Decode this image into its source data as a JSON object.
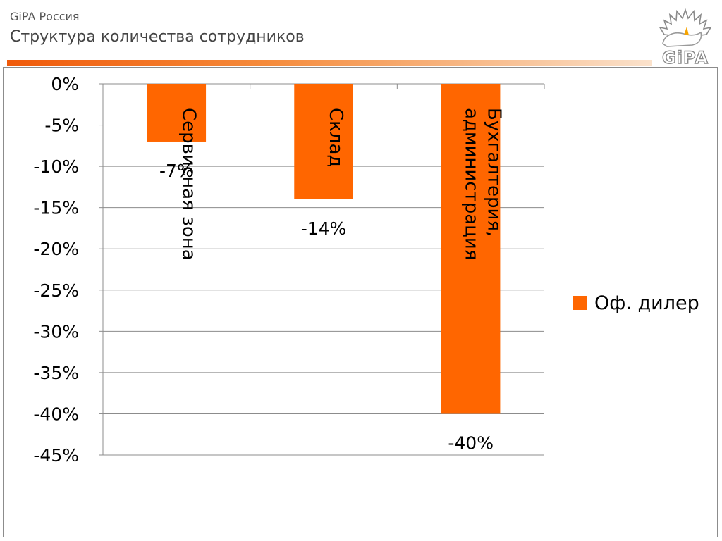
{
  "header": {
    "org": "GiPA Россия",
    "title": "Структура количества сотрудников",
    "logo_text": "GiPA"
  },
  "colors": {
    "accent": "#f05a0a",
    "bar": "#ff6600",
    "grid": "#8c8c8c"
  },
  "chart_data": {
    "type": "bar",
    "categories": [
      "Сервисная зона",
      "Склад",
      [
        "Бухгалтерия,",
        "администрация"
      ]
    ],
    "series": [
      {
        "name": "Оф. дилер",
        "values": [
          -7,
          -14,
          -40
        ],
        "labels": [
          "-7%",
          "-14%",
          "-40%"
        ]
      }
    ],
    "ylim": [
      -45,
      0
    ],
    "yticks": [
      0,
      -5,
      -10,
      -15,
      -20,
      -25,
      -30,
      -35,
      -40,
      -45
    ],
    "ytick_labels": [
      "0%",
      "-5%",
      "-10%",
      "-15%",
      "-20%",
      "-25%",
      "-30%",
      "-35%",
      "-40%",
      "-45%"
    ],
    "grid": true,
    "legend_position": "right",
    "category_label_orientation": "vertical-inside-bars",
    "title": "",
    "xlabel": "",
    "ylabel": ""
  }
}
